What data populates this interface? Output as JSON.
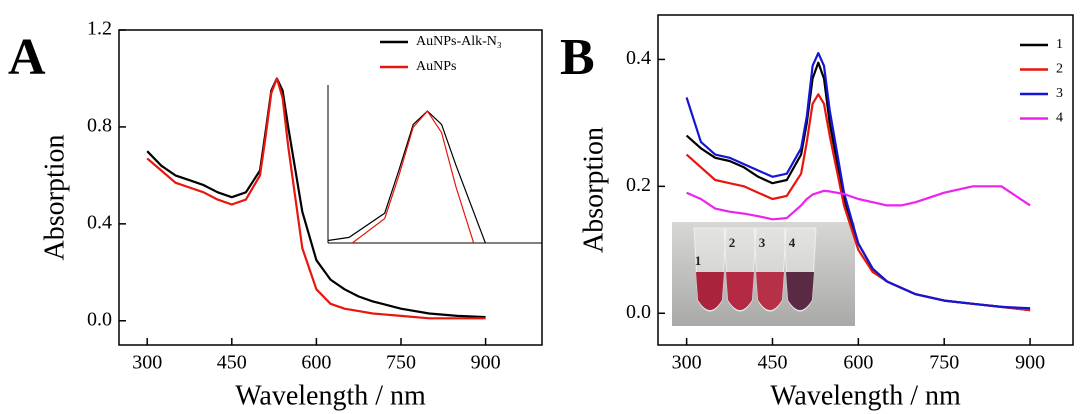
{
  "chart_data": [
    {
      "type": "line",
      "panel_label": "A",
      "xlabel": "Wavelength / nm",
      "ylabel": "Absorption",
      "x": [
        300,
        325,
        350,
        375,
        400,
        425,
        450,
        475,
        500,
        510,
        520,
        530,
        540,
        550,
        575,
        600,
        625,
        650,
        675,
        700,
        750,
        800,
        850,
        900
      ],
      "series": [
        {
          "name": "AuNPs-Alk-N₃",
          "color": "#000000",
          "values": [
            0.7,
            0.64,
            0.6,
            0.58,
            0.56,
            0.53,
            0.51,
            0.53,
            0.62,
            0.78,
            0.95,
            1.0,
            0.95,
            0.8,
            0.45,
            0.25,
            0.17,
            0.13,
            0.1,
            0.08,
            0.05,
            0.03,
            0.02,
            0.015
          ]
        },
        {
          "name": "AuNPs",
          "color": "#e8160c",
          "values": [
            0.67,
            0.62,
            0.57,
            0.55,
            0.53,
            0.5,
            0.48,
            0.5,
            0.6,
            0.76,
            0.94,
            1.0,
            0.92,
            0.72,
            0.3,
            0.13,
            0.07,
            0.05,
            0.04,
            0.03,
            0.02,
            0.01,
            0.01,
            0.01
          ]
        }
      ],
      "xlim": [
        250,
        1000
      ],
      "ylim": [
        -0.1,
        1.2
      ],
      "xticks": [
        300,
        450,
        600,
        750,
        900
      ],
      "yticks": [
        {
          "value": 0,
          "label": "0.0"
        },
        0.4,
        0.8,
        1.2
      ],
      "legend": "upper right",
      "inset": {
        "xlim": [
          470,
          600
        ],
        "ylim": [
          0.55,
          1.06
        ]
      }
    },
    {
      "type": "line",
      "panel_label": "B",
      "xlabel": "Wavelength / nm",
      "ylabel": "Absorption",
      "x": [
        300,
        325,
        350,
        375,
        400,
        425,
        450,
        475,
        500,
        510,
        520,
        530,
        540,
        550,
        575,
        600,
        625,
        650,
        675,
        700,
        750,
        800,
        850,
        900
      ],
      "series": [
        {
          "name": "1",
          "color": "#000000",
          "values": [
            0.28,
            0.26,
            0.245,
            0.24,
            0.23,
            0.215,
            0.205,
            0.21,
            0.25,
            0.3,
            0.37,
            0.395,
            0.37,
            0.3,
            0.18,
            0.11,
            0.07,
            0.05,
            0.04,
            0.03,
            0.02,
            0.015,
            0.01,
            0.005
          ]
        },
        {
          "name": "2",
          "color": "#e8160c",
          "values": [
            0.25,
            0.23,
            0.21,
            0.205,
            0.2,
            0.19,
            0.18,
            0.185,
            0.22,
            0.27,
            0.33,
            0.345,
            0.33,
            0.28,
            0.17,
            0.1,
            0.065,
            0.05,
            0.04,
            0.03,
            0.02,
            0.015,
            0.01,
            0.005
          ]
        },
        {
          "name": "3",
          "color": "#1515d6",
          "values": [
            0.34,
            0.27,
            0.25,
            0.245,
            0.235,
            0.225,
            0.215,
            0.22,
            0.26,
            0.31,
            0.39,
            0.41,
            0.39,
            0.32,
            0.19,
            0.11,
            0.07,
            0.05,
            0.04,
            0.03,
            0.02,
            0.015,
            0.01,
            0.008
          ]
        },
        {
          "name": "4",
          "color": "#ee22ee",
          "values": [
            0.19,
            0.18,
            0.165,
            0.16,
            0.157,
            0.153,
            0.148,
            0.15,
            0.17,
            0.18,
            0.187,
            0.19,
            0.193,
            0.192,
            0.188,
            0.18,
            0.175,
            0.17,
            0.17,
            0.175,
            0.19,
            0.2,
            0.2,
            0.17
          ]
        }
      ],
      "xlim": [
        250,
        975
      ],
      "ylim": [
        -0.05,
        0.47
      ],
      "xticks": [
        300,
        450,
        600,
        750,
        900
      ],
      "yticks": [
        {
          "value": 0,
          "label": "0.0"
        },
        0.2,
        0.4
      ],
      "legend": "upper right",
      "photo_labels": [
        "1",
        "2",
        "3",
        "4"
      ]
    }
  ]
}
